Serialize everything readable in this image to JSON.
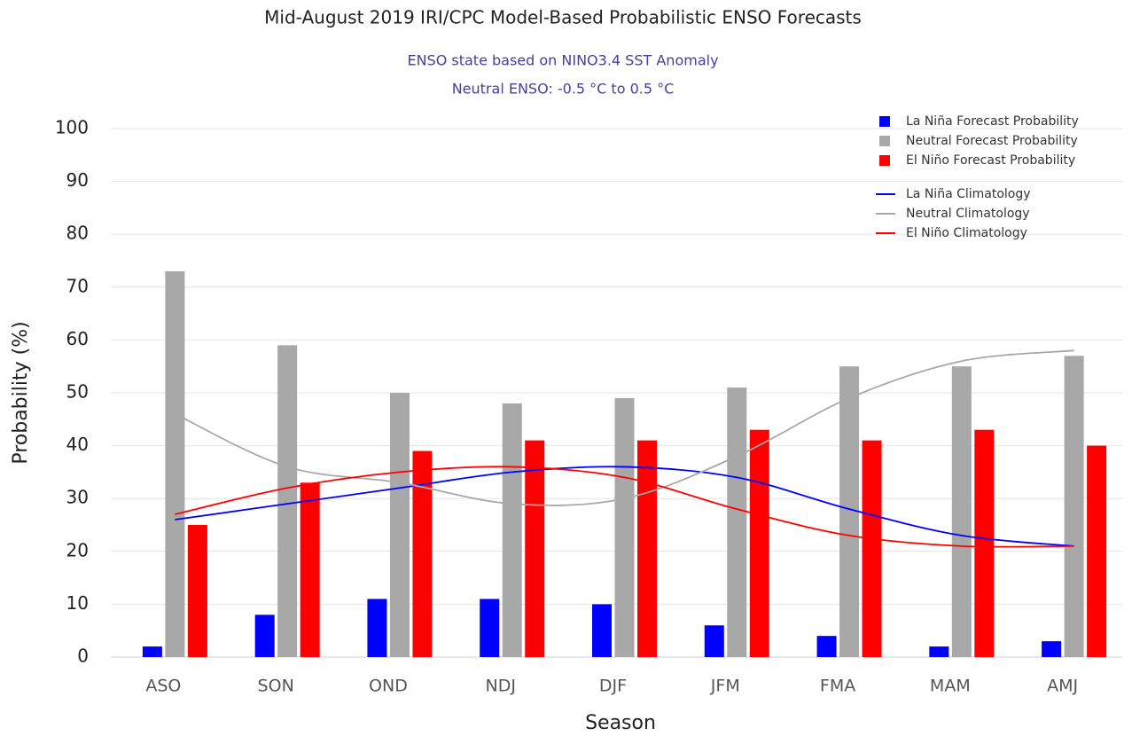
{
  "chart_data": {
    "type": "bar",
    "title": "Mid-August 2019 IRI/CPC Model-Based Probabilistic ENSO Forecasts",
    "subtitle": [
      "ENSO state based on NINO3.4 SST Anomaly",
      "Neutral ENSO: -0.5 °C to 0.5 °C"
    ],
    "x_label": "Season",
    "y_label": "Probability (%)",
    "categories": [
      "ASO",
      "SON",
      "OND",
      "NDJ",
      "DJF",
      "JFM",
      "FMA",
      "MAM",
      "AMJ"
    ],
    "ylim": [
      0,
      100
    ],
    "yticks": [
      0,
      10,
      20,
      30,
      40,
      50,
      60,
      70,
      80,
      90,
      100
    ],
    "grid": true,
    "legend": "upper right",
    "series": [
      {
        "name": "La Niña Forecast Probability",
        "type": "bar",
        "color": "#0000ff",
        "values": [
          2,
          8,
          11,
          11,
          10,
          6,
          4,
          2,
          3
        ]
      },
      {
        "name": "Neutral Forecast Probability",
        "type": "bar",
        "color": "#a8a8a8",
        "values": [
          73,
          59,
          50,
          48,
          49,
          51,
          55,
          55,
          57
        ]
      },
      {
        "name": "El Niño Forecast Probability",
        "type": "bar",
        "color": "#ff0000",
        "values": [
          25,
          33,
          39,
          41,
          41,
          43,
          41,
          43,
          40
        ]
      },
      {
        "name": "La Niña Climatology",
        "type": "line",
        "color": "#0000ff",
        "values": [
          26,
          29,
          32,
          35,
          36,
          34,
          28,
          23,
          21
        ]
      },
      {
        "name": "Neutral Climatology",
        "type": "line",
        "color": "#a8a8a8",
        "values": [
          46,
          36,
          33,
          29,
          30,
          38,
          49,
          56,
          58
        ]
      },
      {
        "name": "El Niño Climatology",
        "type": "line",
        "color": "#ff0000",
        "values": [
          27,
          32,
          35,
          36,
          34,
          28,
          23,
          21,
          21
        ]
      }
    ]
  }
}
